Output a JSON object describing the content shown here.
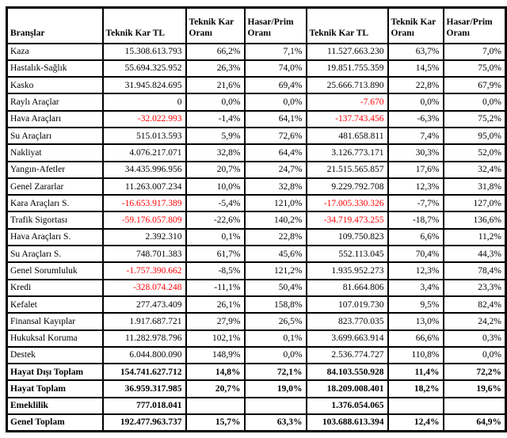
{
  "page": {
    "background_color": "#ffffff",
    "text_color": "#000000",
    "negative_value_color": "#ff0000"
  },
  "table": {
    "columns": [
      {
        "label": "Branşlar"
      },
      {
        "label": "Teknik Kar TL"
      },
      {
        "label": "Teknik Kar Oranı"
      },
      {
        "label": "Hasar/Prim Oranı"
      },
      {
        "label": "Teknik Kar TL"
      },
      {
        "label": "Teknik Kar Oranı"
      },
      {
        "label": "Hasar/Prim Oranı"
      }
    ],
    "rows": [
      {
        "cells": [
          "Kaza",
          "15.308.613.793",
          "66,2%",
          "7,1%",
          "11.527.663.230",
          "63,7%",
          "7,0%"
        ]
      },
      {
        "cells": [
          "Hastalık-Sağlık",
          "55.694.325.952",
          "26,3%",
          "74,0%",
          "19.851.755.359",
          "14,5%",
          "75,0%"
        ]
      },
      {
        "cells": [
          "Kasko",
          "31.945.824.695",
          "21,6%",
          "69,4%",
          "25.666.713.890",
          "22,8%",
          "67,9%"
        ]
      },
      {
        "cells": [
          "Raylı Araçlar",
          "0",
          "0,0%",
          "0,0%",
          "-7.670",
          "0,0%",
          "0,0%"
        ]
      },
      {
        "cells": [
          "Hava Araçları",
          "-32.022.993",
          "-1,4%",
          "64,1%",
          "-137.743.456",
          "-6,3%",
          "75,2%"
        ]
      },
      {
        "cells": [
          "Su Araçları",
          "515.013.593",
          "5,9%",
          "72,6%",
          "481.658.811",
          "7,4%",
          "95,0%"
        ]
      },
      {
        "cells": [
          "Nakliyat",
          "4.076.217.071",
          "32,8%",
          "64,4%",
          "3.126.773.171",
          "30,3%",
          "52,0%"
        ]
      },
      {
        "cells": [
          "Yangın-Afetler",
          "34.435.996.956",
          "20,7%",
          "24,7%",
          "21.515.565.857",
          "17,6%",
          "32,4%"
        ]
      },
      {
        "cells": [
          "Genel Zararlar",
          "11.263.007.234",
          "10,0%",
          "32,8%",
          "9.229.792.708",
          "12,3%",
          "31,8%"
        ]
      },
      {
        "cells": [
          "Kara Araçları S.",
          "-16.653.917.389",
          "-5,4%",
          "121,0%",
          "-17.005.330.326",
          "-7,7%",
          "127,0%"
        ]
      },
      {
        "cells": [
          "Trafik Sigortası",
          "-59.176.057.809",
          "-22,6%",
          "140,2%",
          "-34.719.473.255",
          "-18,7%",
          "136,6%"
        ]
      },
      {
        "cells": [
          "Hava Araçları S.",
          "2.392.310",
          "0,1%",
          "22,8%",
          "109.750.823",
          "6,6%",
          "11,2%"
        ]
      },
      {
        "cells": [
          "Su Araçları S.",
          "748.701.383",
          "61,7%",
          "45,6%",
          "552.113.045",
          "70,4%",
          "44,3%"
        ]
      },
      {
        "cells": [
          "Genel Sorumluluk",
          "-1.757.390.662",
          "-8,5%",
          "121,2%",
          "1.935.952.273",
          "12,3%",
          "78,4%"
        ]
      },
      {
        "cells": [
          "Kredi",
          "-328.074.248",
          "-11,1%",
          "50,4%",
          "81.664.806",
          "3,4%",
          "23,3%"
        ]
      },
      {
        "cells": [
          "Kefalet",
          "277.473.409",
          "26,1%",
          "158,8%",
          "107.019.730",
          "9,5%",
          "82,4%"
        ]
      },
      {
        "cells": [
          "Finansal Kayıplar",
          "1.917.687.721",
          "27,9%",
          "26,5%",
          "823.770.035",
          "13,0%",
          "24,2%"
        ]
      },
      {
        "cells": [
          "Hukuksal Koruma",
          "11.282.978.796",
          "102,1%",
          "0,1%",
          "3.699.663.914",
          "66,6%",
          "0,3%"
        ]
      },
      {
        "cells": [
          "Destek",
          "6.044.800.090",
          "148,9%",
          "0,0%",
          "2.536.774.727",
          "110,8%",
          "0,0%"
        ]
      },
      {
        "cells": [
          "Hayat Dışı Toplam",
          "154.741.627.712",
          "14,8%",
          "72,1%",
          "84.103.550.928",
          "11,4%",
          "72,2%"
        ],
        "bold": true
      },
      {
        "cells": [
          "Hayat Toplam",
          "36.959.317.985",
          "20,7%",
          "19,0%",
          "18.209.008.401",
          "18,2%",
          "19,6%"
        ],
        "bold": true
      },
      {
        "cells": [
          "Emeklilik",
          "777.018.041",
          "",
          "",
          "1.376.054.065",
          "",
          ""
        ],
        "bold": true
      },
      {
        "cells": [
          "Genel Toplam",
          "192.477.963.737",
          "15,7%",
          "63,3%",
          "103.688.613.394",
          "12,4%",
          "64,9%"
        ],
        "bold": true
      }
    ]
  }
}
